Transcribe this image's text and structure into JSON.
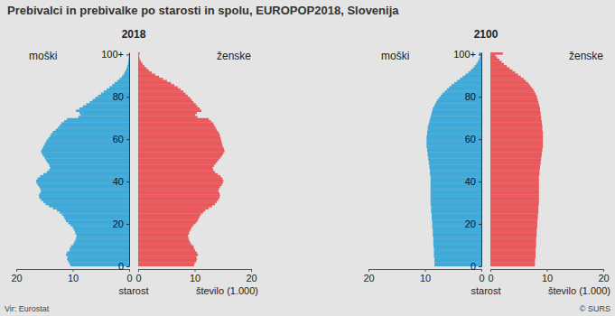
{
  "title": "Prebivalci in prebivalke po starosti in spolu, EUROPOP2018, Slovenija",
  "source": "Vir: Eurostat",
  "credit": "© SURS",
  "chart_data": [
    {
      "type": "bar",
      "orientation": "horizontal",
      "title": "2018",
      "x_label": "starost",
      "y_label": "število (1.000)",
      "x": [
        0,
        1,
        2,
        3,
        4,
        5,
        6,
        7,
        8,
        9,
        10,
        11,
        12,
        13,
        14,
        15,
        16,
        17,
        18,
        19,
        20,
        21,
        22,
        23,
        24,
        25,
        26,
        27,
        28,
        29,
        30,
        31,
        32,
        33,
        34,
        35,
        36,
        37,
        38,
        39,
        40,
        41,
        42,
        43,
        44,
        45,
        46,
        47,
        48,
        49,
        50,
        51,
        52,
        53,
        54,
        55,
        56,
        57,
        58,
        59,
        60,
        61,
        62,
        63,
        64,
        65,
        66,
        67,
        68,
        69,
        70,
        71,
        72,
        73,
        74,
        75,
        76,
        77,
        78,
        79,
        80,
        81,
        82,
        83,
        84,
        85,
        86,
        87,
        88,
        89,
        90,
        91,
        92,
        93,
        94,
        95,
        96,
        97,
        98,
        99,
        100
      ],
      "xlim": [
        0,
        101
      ],
      "xticks": [
        0,
        20,
        40,
        60,
        80,
        {
          "value": 100,
          "label": "100+"
        }
      ],
      "ylim": [
        0,
        20
      ],
      "yticks": [
        0,
        10,
        20
      ],
      "series": [
        {
          "name": "moški",
          "color": "#3fa9d8",
          "values": [
            10.4,
            10.6,
            10.8,
            11.0,
            10.9,
            11.2,
            11.0,
            10.6,
            10.5,
            10.3,
            9.9,
            9.7,
            9.5,
            9.4,
            9.3,
            9.5,
            9.6,
            9.8,
            10.0,
            10.4,
            10.8,
            11.2,
            11.4,
            11.6,
            11.9,
            12.3,
            12.8,
            13.5,
            14.2,
            14.8,
            15.2,
            15.6,
            15.9,
            16.0,
            15.8,
            15.6,
            15.7,
            15.9,
            16.2,
            16.4,
            16.5,
            16.2,
            15.8,
            15.2,
            14.6,
            14.2,
            14.0,
            14.1,
            14.3,
            14.6,
            14.8,
            15.0,
            15.3,
            15.5,
            15.6,
            15.4,
            15.2,
            15.0,
            14.8,
            14.6,
            14.3,
            14.0,
            13.8,
            13.5,
            13.0,
            12.6,
            12.3,
            12.0,
            11.5,
            11.0,
            9.0,
            8.6,
            8.8,
            9.4,
            8.8,
            8.2,
            7.6,
            7.0,
            6.5,
            6.0,
            5.5,
            5.0,
            4.5,
            4.0,
            3.5,
            3.0,
            2.6,
            2.1,
            1.7,
            1.3,
            1.0,
            0.8,
            0.6,
            0.45,
            0.32,
            0.22,
            0.15,
            0.1,
            0.06,
            0.04,
            0.03
          ]
        },
        {
          "name": "ženske",
          "color": "#e9585b",
          "values": [
            9.9,
            10.0,
            10.3,
            10.4,
            10.3,
            10.6,
            10.4,
            10.1,
            9.9,
            9.8,
            9.4,
            9.2,
            9.0,
            8.9,
            8.8,
            9.0,
            9.1,
            9.3,
            9.5,
            9.8,
            10.2,
            10.5,
            10.7,
            10.9,
            11.1,
            11.5,
            11.9,
            12.5,
            13.1,
            13.6,
            13.9,
            14.2,
            14.4,
            14.5,
            14.4,
            14.2,
            14.3,
            14.5,
            14.8,
            15.0,
            15.1,
            14.9,
            14.6,
            14.1,
            13.6,
            13.3,
            13.2,
            13.4,
            13.7,
            14.0,
            14.3,
            14.6,
            14.9,
            15.1,
            15.3,
            15.2,
            15.0,
            14.9,
            14.8,
            14.7,
            14.6,
            14.5,
            14.4,
            14.2,
            13.9,
            13.7,
            13.5,
            13.3,
            12.9,
            12.5,
            10.5,
            10.1,
            10.4,
            11.2,
            10.9,
            10.5,
            10.2,
            9.8,
            9.5,
            9.2,
            8.8,
            8.4,
            8.0,
            7.5,
            7.0,
            6.4,
            5.8,
            5.1,
            4.4,
            3.7,
            3.0,
            2.4,
            1.9,
            1.5,
            1.1,
            0.8,
            0.55,
            0.35,
            0.22,
            0.14,
            0.25
          ]
        }
      ]
    },
    {
      "type": "bar",
      "orientation": "horizontal",
      "title": "2100",
      "x_label": "starost",
      "y_label": "število (1.000)",
      "x": [
        0,
        1,
        2,
        3,
        4,
        5,
        6,
        7,
        8,
        9,
        10,
        11,
        12,
        13,
        14,
        15,
        16,
        17,
        18,
        19,
        20,
        21,
        22,
        23,
        24,
        25,
        26,
        27,
        28,
        29,
        30,
        31,
        32,
        33,
        34,
        35,
        36,
        37,
        38,
        39,
        40,
        41,
        42,
        43,
        44,
        45,
        46,
        47,
        48,
        49,
        50,
        51,
        52,
        53,
        54,
        55,
        56,
        57,
        58,
        59,
        60,
        61,
        62,
        63,
        64,
        65,
        66,
        67,
        68,
        69,
        70,
        71,
        72,
        73,
        74,
        75,
        76,
        77,
        78,
        79,
        80,
        81,
        82,
        83,
        84,
        85,
        86,
        87,
        88,
        89,
        90,
        91,
        92,
        93,
        94,
        95,
        96,
        97,
        98,
        99,
        100
      ],
      "xlim": [
        0,
        101
      ],
      "xticks": [
        0,
        20,
        40,
        60,
        80,
        {
          "value": 100,
          "label": "100+"
        }
      ],
      "ylim": [
        0,
        20
      ],
      "yticks": [
        0,
        10,
        20
      ],
      "series": [
        {
          "name": "moški",
          "color": "#3fa9d8",
          "values": [
            8.3,
            8.3,
            8.3,
            8.3,
            8.4,
            8.4,
            8.4,
            8.4,
            8.4,
            8.5,
            8.5,
            8.5,
            8.5,
            8.5,
            8.6,
            8.6,
            8.6,
            8.6,
            8.7,
            8.7,
            8.7,
            8.7,
            8.8,
            8.8,
            8.8,
            8.9,
            8.9,
            8.9,
            8.9,
            9.0,
            9.0,
            9.0,
            9.0,
            9.0,
            9.0,
            9.0,
            9.0,
            9.0,
            9.0,
            9.0,
            9.0,
            9.0,
            9.0,
            9.1,
            9.1,
            9.1,
            9.2,
            9.2,
            9.3,
            9.3,
            9.4,
            9.4,
            9.5,
            9.5,
            9.6,
            9.6,
            9.7,
            9.7,
            9.7,
            9.7,
            9.7,
            9.7,
            9.6,
            9.6,
            9.5,
            9.5,
            9.4,
            9.3,
            9.2,
            9.1,
            9.0,
            8.9,
            8.8,
            8.7,
            8.6,
            8.4,
            8.2,
            8.0,
            7.8,
            7.5,
            7.2,
            6.9,
            6.5,
            6.1,
            5.7,
            5.3,
            4.8,
            4.3,
            3.8,
            3.3,
            2.8,
            2.3,
            1.9,
            1.5,
            1.2,
            0.9,
            0.65,
            0.45,
            0.3,
            0.2,
            0.4
          ]
        },
        {
          "name": "ženske",
          "color": "#e9585b",
          "values": [
            7.9,
            7.9,
            7.9,
            7.9,
            8.0,
            8.0,
            8.0,
            8.0,
            8.0,
            8.1,
            8.1,
            8.1,
            8.1,
            8.1,
            8.2,
            8.2,
            8.2,
            8.2,
            8.3,
            8.3,
            8.3,
            8.3,
            8.4,
            8.4,
            8.4,
            8.5,
            8.5,
            8.5,
            8.5,
            8.6,
            8.6,
            8.6,
            8.6,
            8.6,
            8.6,
            8.6,
            8.6,
            8.6,
            8.6,
            8.6,
            8.6,
            8.6,
            8.6,
            8.7,
            8.7,
            8.7,
            8.8,
            8.8,
            8.9,
            8.9,
            9.0,
            9.0,
            9.1,
            9.1,
            9.2,
            9.2,
            9.3,
            9.3,
            9.3,
            9.3,
            9.3,
            9.3,
            9.3,
            9.3,
            9.2,
            9.2,
            9.2,
            9.1,
            9.1,
            9.0,
            9.0,
            8.9,
            8.9,
            8.8,
            8.8,
            8.7,
            8.6,
            8.5,
            8.4,
            8.3,
            8.2,
            8.0,
            7.8,
            7.6,
            7.3,
            7.0,
            6.7,
            6.3,
            5.9,
            5.4,
            4.9,
            4.4,
            3.9,
            3.4,
            2.9,
            2.4,
            2.0,
            1.6,
            1.2,
            0.9,
            2.2
          ]
        }
      ]
    }
  ]
}
